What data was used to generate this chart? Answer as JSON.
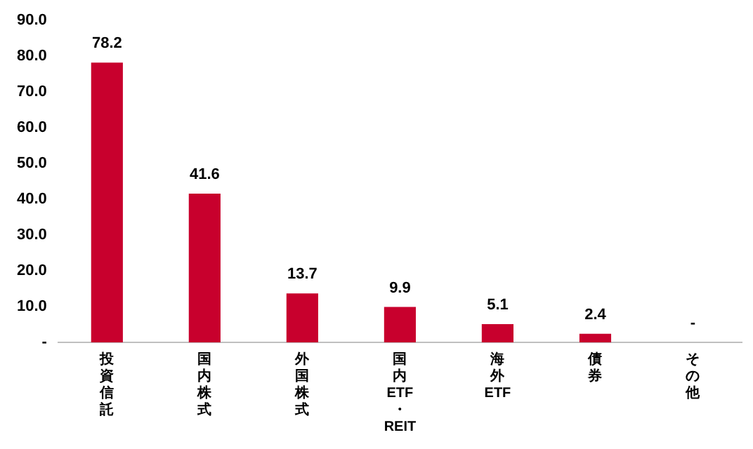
{
  "chart_data": {
    "type": "bar",
    "categories": [
      "投資信託",
      "国内株式",
      "外国株式",
      "国内ETF・REIT",
      "海外ETF",
      "債券",
      "その他"
    ],
    "values": [
      78.2,
      41.6,
      13.7,
      9.9,
      5.1,
      2.4,
      0
    ],
    "value_labels": [
      "78.2",
      "41.6",
      "13.7",
      "9.9",
      "5.1",
      "2.4",
      "-"
    ],
    "color": "#c8002d",
    "ylim": [
      0,
      90
    ],
    "yticks": [
      {
        "value": 0,
        "label": "-"
      },
      {
        "value": 10,
        "label": "10.0"
      },
      {
        "value": 20,
        "label": "20.0"
      },
      {
        "value": 30,
        "label": "30.0"
      },
      {
        "value": 40,
        "label": "40.0"
      },
      {
        "value": 50,
        "label": "50.0"
      },
      {
        "value": 60,
        "label": "60.0"
      },
      {
        "value": 70,
        "label": "70.0"
      },
      {
        "value": 80,
        "label": "80.0"
      },
      {
        "value": 90,
        "label": "90.0"
      }
    ],
    "grid": false,
    "legend": false
  }
}
